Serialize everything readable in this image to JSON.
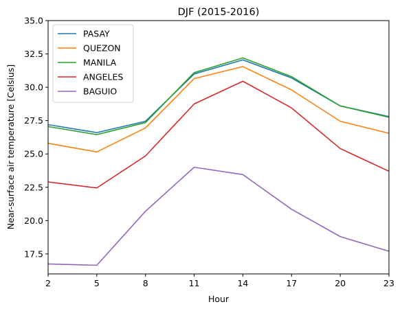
{
  "chart_data": {
    "type": "line",
    "title": "DJF (2015-2016)",
    "xlabel": "Hour",
    "ylabel": "Near-surface air temperature [Celsius]",
    "x": [
      2,
      5,
      8,
      11,
      14,
      17,
      20,
      23
    ],
    "xlim": [
      2,
      23
    ],
    "ylim": [
      16.0,
      35.0
    ],
    "xticks": [
      "2",
      "5",
      "8",
      "11",
      "14",
      "17",
      "20",
      "23"
    ],
    "yticks": [
      "17.5",
      "20.0",
      "22.5",
      "25.0",
      "27.5",
      "30.0",
      "32.5",
      "35.0"
    ],
    "grid": false,
    "legend_position": "top-left",
    "series": [
      {
        "name": "PASAY",
        "color": "#1f77b4",
        "values": [
          27.2,
          26.6,
          27.45,
          31.0,
          32.05,
          30.7,
          28.6,
          27.8
        ]
      },
      {
        "name": "QUEZON",
        "color": "#ff7f0e",
        "values": [
          25.8,
          25.15,
          26.95,
          30.65,
          31.55,
          29.8,
          27.45,
          26.55
        ]
      },
      {
        "name": "MANILA",
        "color": "#2ca02c",
        "values": [
          27.05,
          26.45,
          27.35,
          31.1,
          32.2,
          30.8,
          28.6,
          27.75
        ]
      },
      {
        "name": "ANGELES",
        "color": "#d62728",
        "values": [
          22.9,
          22.45,
          24.85,
          28.75,
          30.45,
          28.45,
          25.4,
          23.7
        ]
      },
      {
        "name": "BAGUIO",
        "color": "#9467bd",
        "values": [
          16.75,
          16.65,
          20.7,
          24.0,
          23.45,
          20.85,
          18.8,
          17.7
        ]
      }
    ]
  }
}
